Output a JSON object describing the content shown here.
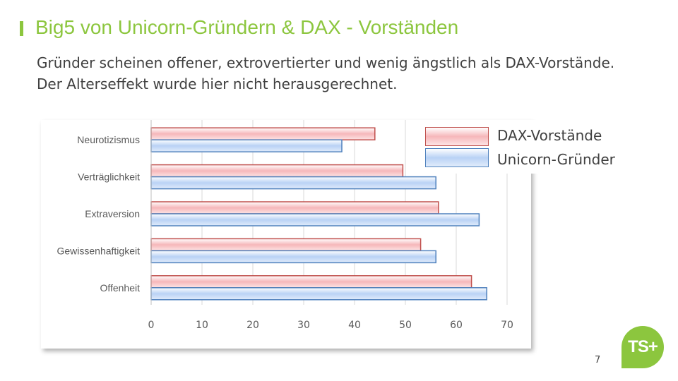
{
  "slide": {
    "title": "Big5 von Unicorn-Gründern & DAX - Vorständen",
    "subtitle": "Gründer scheinen offener, extrovertierter  und wenig ängstlich als DAX-Vorstände. Der Alterseffekt wurde hier nicht herausgerechnet.",
    "page_number": "7",
    "logo_text": "TS+"
  },
  "colors": {
    "accent": "#8cc63e",
    "dax_fill": "#f9c6c8",
    "dax_border": "#c0504d",
    "unicorn_fill": "#c7dbf8",
    "unicorn_border": "#4f81bd"
  },
  "chart_data": {
    "type": "bar",
    "orientation": "horizontal",
    "categories": [
      "Neurotizismus",
      "Verträglichkeit",
      "Extraversion",
      "Gewissenhaftigkeit",
      "Offenheit"
    ],
    "series": [
      {
        "name": "DAX-Vorstände",
        "values": [
          44,
          49.5,
          56.5,
          53,
          63
        ],
        "color": "#f9c6c8",
        "border": "#c0504d"
      },
      {
        "name": "Unicorn-Gründer",
        "values": [
          37.5,
          56,
          64.5,
          56,
          66
        ],
        "color": "#c7dbf8",
        "border": "#4f81bd"
      }
    ],
    "xlim": [
      0,
      70
    ],
    "xticks": [
      "0",
      "10",
      "20",
      "30",
      "40",
      "50",
      "60",
      "70"
    ],
    "grid": true,
    "legend": "top-right"
  }
}
